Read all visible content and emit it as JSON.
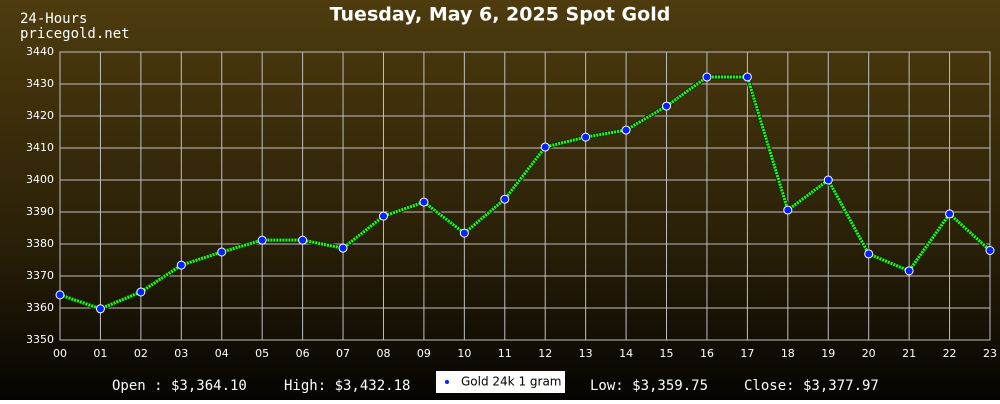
{
  "chart_data": {
    "type": "line",
    "title": "Tuesday, May 6, 2025 Spot Gold",
    "subtitle": "24-Hours",
    "source": "pricegold.net",
    "categories": [
      "00",
      "01",
      "02",
      "03",
      "04",
      "05",
      "06",
      "07",
      "08",
      "09",
      "10",
      "11",
      "12",
      "13",
      "14",
      "15",
      "16",
      "17",
      "18",
      "19",
      "20",
      "21",
      "22",
      "23"
    ],
    "series": [
      {
        "name": "Gold 24k 1 gram",
        "color": "#33ee22",
        "marker_color": "#0022ff",
        "values": [
          3364.1,
          3359.75,
          3365,
          3373.4,
          3377.5,
          3381.2,
          3381.2,
          3378.7,
          3388.7,
          3393.1,
          3383.4,
          3394,
          3410.3,
          3413.4,
          3415.6,
          3423.1,
          3432.18,
          3432.2,
          3390.6,
          3400,
          3376.9,
          3371.6,
          3389.4,
          3377.97
        ]
      }
    ],
    "ylim": [
      3350,
      3440
    ],
    "yticks": [
      3350,
      3360,
      3370,
      3380,
      3390,
      3400,
      3410,
      3420,
      3430,
      3440
    ],
    "grid": true,
    "annotations": [
      "Open : $3,364.10",
      "High: $3,432.18",
      "Low: $3,359.75",
      "Close: $3,377.97"
    ]
  }
}
